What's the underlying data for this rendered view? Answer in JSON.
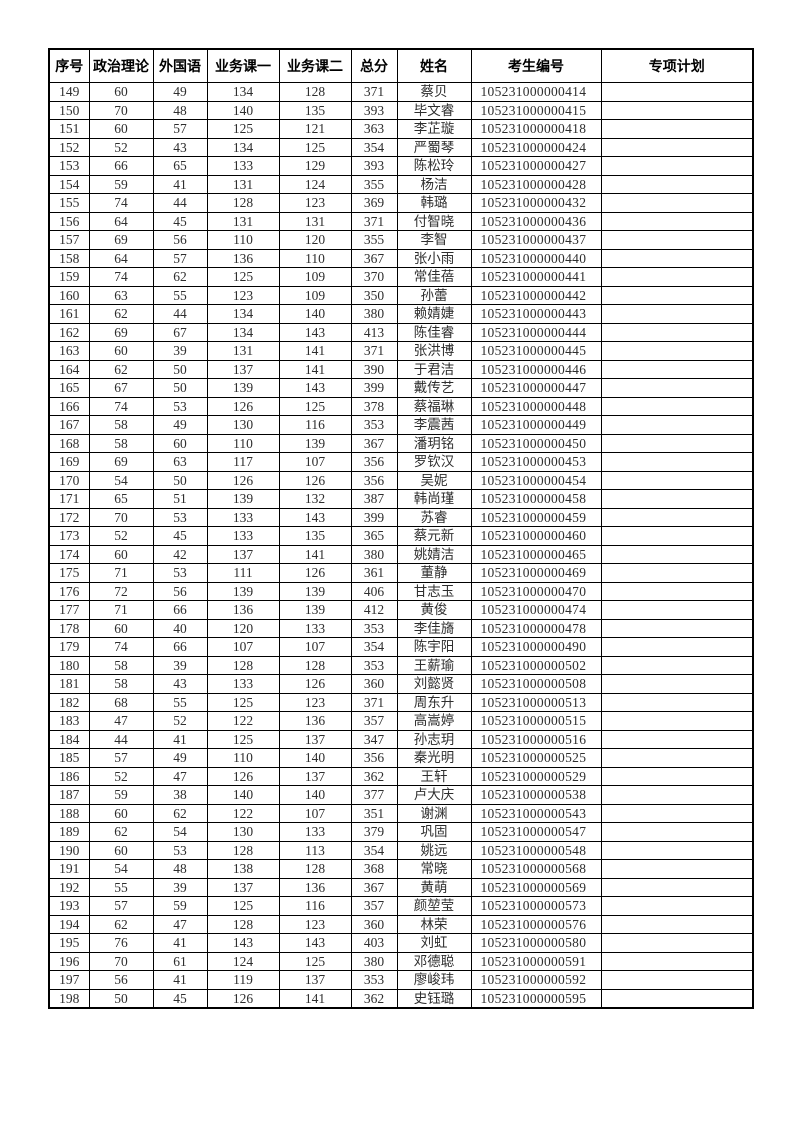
{
  "table": {
    "columns": [
      "序号",
      "政治理论",
      "外国语",
      "业务课一",
      "业务课二",
      "总分",
      "姓名",
      "考生编号",
      "专项计划"
    ],
    "rows": [
      [
        149,
        60,
        49,
        134,
        128,
        371,
        "蔡贝",
        "105231000000414",
        ""
      ],
      [
        150,
        70,
        48,
        140,
        135,
        393,
        "毕文睿",
        "105231000000415",
        ""
      ],
      [
        151,
        60,
        57,
        125,
        121,
        363,
        "李芷璇",
        "105231000000418",
        ""
      ],
      [
        152,
        52,
        43,
        134,
        125,
        354,
        "严蜀琴",
        "105231000000424",
        ""
      ],
      [
        153,
        66,
        65,
        133,
        129,
        393,
        "陈松玲",
        "105231000000427",
        ""
      ],
      [
        154,
        59,
        41,
        131,
        124,
        355,
        "杨洁",
        "105231000000428",
        ""
      ],
      [
        155,
        74,
        44,
        128,
        123,
        369,
        "韩璐",
        "105231000000432",
        ""
      ],
      [
        156,
        64,
        45,
        131,
        131,
        371,
        "付智晓",
        "105231000000436",
        ""
      ],
      [
        157,
        69,
        56,
        110,
        120,
        355,
        "李智",
        "105231000000437",
        ""
      ],
      [
        158,
        64,
        57,
        136,
        110,
        367,
        "张小雨",
        "105231000000440",
        ""
      ],
      [
        159,
        74,
        62,
        125,
        109,
        370,
        "常佳蓓",
        "105231000000441",
        ""
      ],
      [
        160,
        63,
        55,
        123,
        109,
        350,
        "孙蕾",
        "105231000000442",
        ""
      ],
      [
        161,
        62,
        44,
        134,
        140,
        380,
        "赖婧婕",
        "105231000000443",
        ""
      ],
      [
        162,
        69,
        67,
        134,
        143,
        413,
        "陈佳睿",
        "105231000000444",
        ""
      ],
      [
        163,
        60,
        39,
        131,
        141,
        371,
        "张洪博",
        "105231000000445",
        ""
      ],
      [
        164,
        62,
        50,
        137,
        141,
        390,
        "于君洁",
        "105231000000446",
        ""
      ],
      [
        165,
        67,
        50,
        139,
        143,
        399,
        "戴传艺",
        "105231000000447",
        ""
      ],
      [
        166,
        74,
        53,
        126,
        125,
        378,
        "蔡福琳",
        "105231000000448",
        ""
      ],
      [
        167,
        58,
        49,
        130,
        116,
        353,
        "李震茜",
        "105231000000449",
        ""
      ],
      [
        168,
        58,
        60,
        110,
        139,
        367,
        "潘玥铭",
        "105231000000450",
        ""
      ],
      [
        169,
        69,
        63,
        117,
        107,
        356,
        "罗钦汉",
        "105231000000453",
        ""
      ],
      [
        170,
        54,
        50,
        126,
        126,
        356,
        "吴妮",
        "105231000000454",
        ""
      ],
      [
        171,
        65,
        51,
        139,
        132,
        387,
        "韩尚瑾",
        "105231000000458",
        ""
      ],
      [
        172,
        70,
        53,
        133,
        143,
        399,
        "苏睿",
        "105231000000459",
        ""
      ],
      [
        173,
        52,
        45,
        133,
        135,
        365,
        "蔡元新",
        "105231000000460",
        ""
      ],
      [
        174,
        60,
        42,
        137,
        141,
        380,
        "姚婧洁",
        "105231000000465",
        ""
      ],
      [
        175,
        71,
        53,
        111,
        126,
        361,
        "董静",
        "105231000000469",
        ""
      ],
      [
        176,
        72,
        56,
        139,
        139,
        406,
        "甘志玉",
        "105231000000470",
        ""
      ],
      [
        177,
        71,
        66,
        136,
        139,
        412,
        "黄俊",
        "105231000000474",
        ""
      ],
      [
        178,
        60,
        40,
        120,
        133,
        353,
        "李佳旖",
        "105231000000478",
        ""
      ],
      [
        179,
        74,
        66,
        107,
        107,
        354,
        "陈宇阳",
        "105231000000490",
        ""
      ],
      [
        180,
        58,
        39,
        128,
        128,
        353,
        "王薪瑜",
        "105231000000502",
        ""
      ],
      [
        181,
        58,
        43,
        133,
        126,
        360,
        "刘懿贤",
        "105231000000508",
        ""
      ],
      [
        182,
        68,
        55,
        125,
        123,
        371,
        "周东升",
        "105231000000513",
        ""
      ],
      [
        183,
        47,
        52,
        122,
        136,
        357,
        "高嵩婷",
        "105231000000515",
        ""
      ],
      [
        184,
        44,
        41,
        125,
        137,
        347,
        "孙志玥",
        "105231000000516",
        ""
      ],
      [
        185,
        57,
        49,
        110,
        140,
        356,
        "秦光明",
        "105231000000525",
        ""
      ],
      [
        186,
        52,
        47,
        126,
        137,
        362,
        "王轩",
        "105231000000529",
        ""
      ],
      [
        187,
        59,
        38,
        140,
        140,
        377,
        "卢大庆",
        "105231000000538",
        ""
      ],
      [
        188,
        60,
        62,
        122,
        107,
        351,
        "谢渊",
        "105231000000543",
        ""
      ],
      [
        189,
        62,
        54,
        130,
        133,
        379,
        "巩固",
        "105231000000547",
        ""
      ],
      [
        190,
        60,
        53,
        128,
        113,
        354,
        "姚远",
        "105231000000548",
        ""
      ],
      [
        191,
        54,
        48,
        138,
        128,
        368,
        "常晓",
        "105231000000568",
        ""
      ],
      [
        192,
        55,
        39,
        137,
        136,
        367,
        "黄萌",
        "105231000000569",
        ""
      ],
      [
        193,
        57,
        59,
        125,
        116,
        357,
        "颜堃莹",
        "105231000000573",
        ""
      ],
      [
        194,
        62,
        47,
        128,
        123,
        360,
        "林荣",
        "105231000000576",
        ""
      ],
      [
        195,
        76,
        41,
        143,
        143,
        403,
        "刘虹",
        "105231000000580",
        ""
      ],
      [
        196,
        70,
        61,
        124,
        125,
        380,
        "邓德聪",
        "105231000000591",
        ""
      ],
      [
        197,
        56,
        41,
        119,
        137,
        353,
        "廖峻玮",
        "105231000000592",
        ""
      ],
      [
        198,
        50,
        45,
        126,
        141,
        362,
        "史钰璐",
        "105231000000595",
        ""
      ]
    ]
  }
}
